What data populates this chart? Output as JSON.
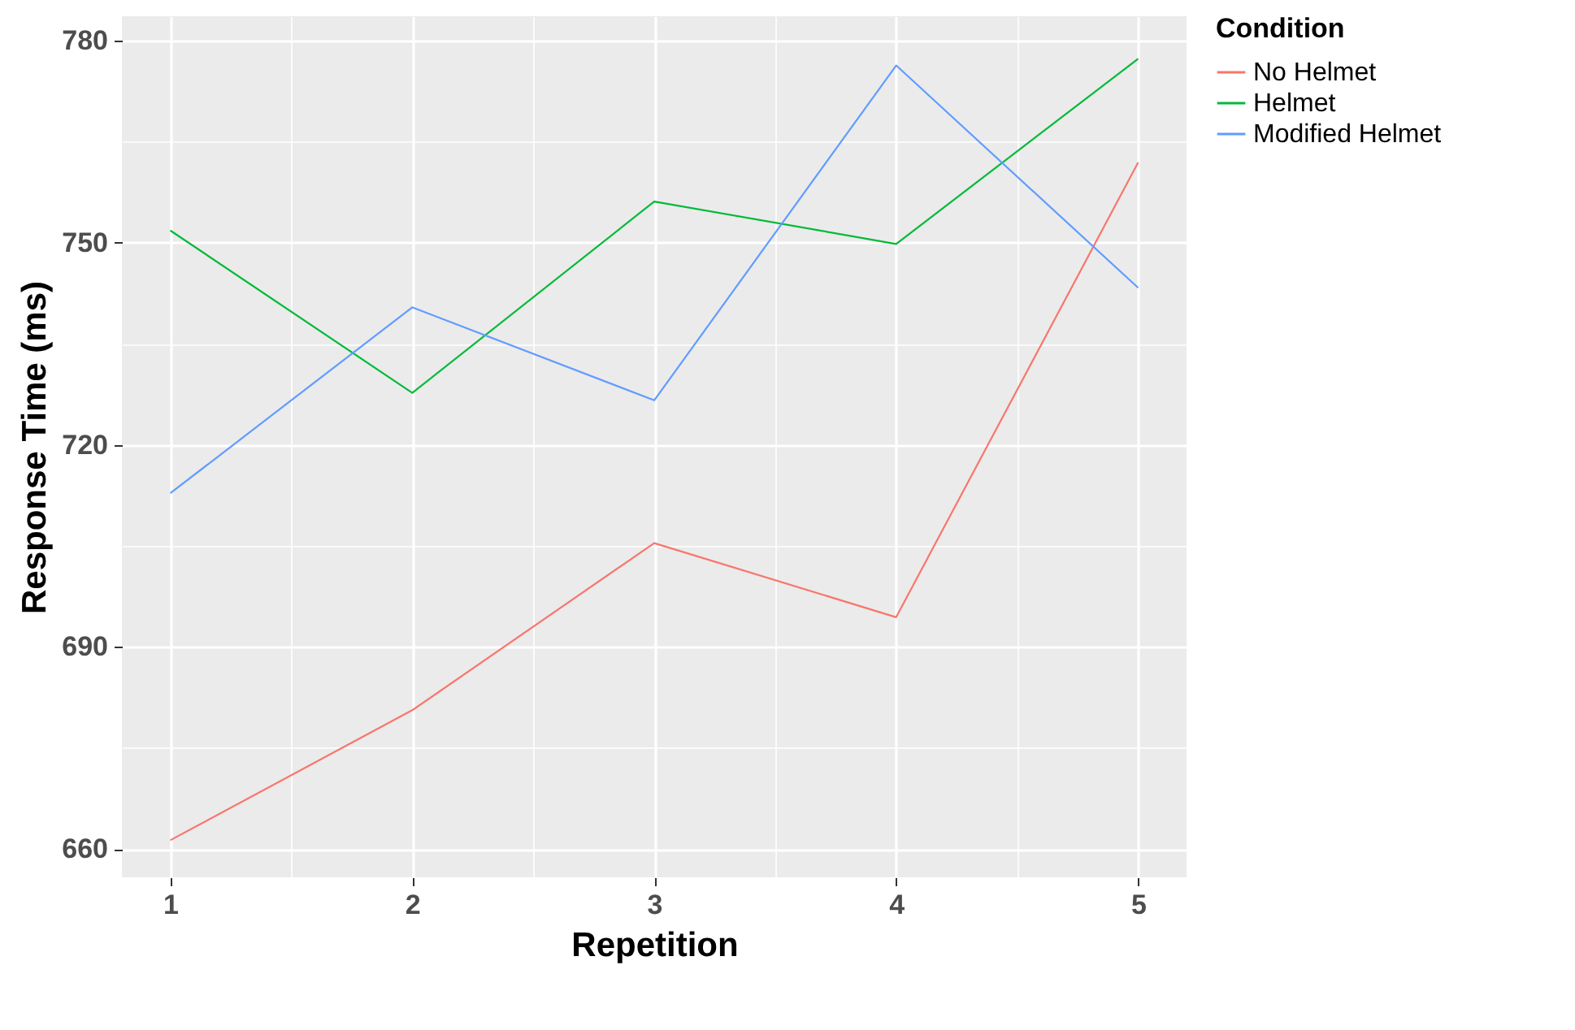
{
  "chart_data": {
    "type": "line",
    "xlabel": "Repetition",
    "ylabel": "Response Time (ms)",
    "legend_title": "Condition",
    "x": [
      1,
      2,
      3,
      4,
      5
    ],
    "series": [
      {
        "name": "No Helmet",
        "color": "#f8766d",
        "values": [
          661.3,
          680.6,
          705.4,
          694.4,
          761.9
        ]
      },
      {
        "name": "Helmet",
        "color": "#00ba38",
        "values": [
          751.8,
          727.7,
          756.1,
          749.8,
          777.3
        ]
      },
      {
        "name": "Modified Helmet",
        "color": "#619cff",
        "values": [
          712.8,
          740.4,
          726.6,
          776.3,
          743.3
        ]
      }
    ],
    "xlim": [
      0.8,
      5.2
    ],
    "xticks": [
      1,
      2,
      3,
      4,
      5
    ],
    "ylim": [
      655.8,
      783.6
    ],
    "yticks": [
      660,
      690,
      720,
      750,
      780
    ],
    "grid": true,
    "legend": "right",
    "marker": "none",
    "line_style": "solid"
  }
}
